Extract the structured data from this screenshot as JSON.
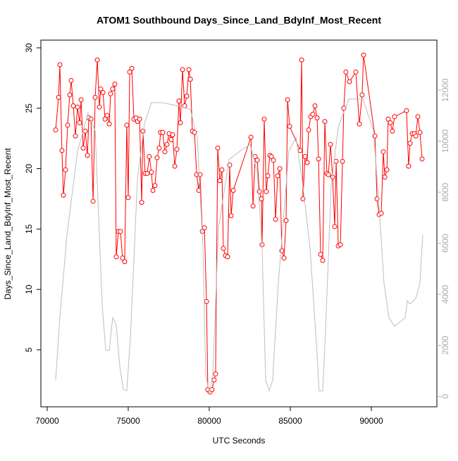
{
  "chart_data": {
    "type": "line",
    "title": "ATOM1 Southbound Days_Since_Land_BdyInf_Most_Recent",
    "xlabel": "UTC Seconds",
    "ylabel": "Days_Since_Land_BdyInf_Most_Recent",
    "xlim": [
      69609,
      94043
    ],
    "ylim": [
      0.28,
      30.64
    ],
    "y2lim": [
      -408,
      13960
    ],
    "xticks": [
      70000,
      75000,
      80000,
      85000,
      90000
    ],
    "yticks": [
      5,
      10,
      15,
      20,
      25,
      30
    ],
    "y2ticks": [
      0,
      2000,
      4000,
      6000,
      8000,
      10000,
      12000
    ],
    "y2_color": "#aaaaaa",
    "series": [
      {
        "color": "#ff0000",
        "markers": true,
        "x": [
          70520,
          70700,
          70780,
          70910,
          71000,
          71130,
          71260,
          71390,
          71480,
          71610,
          71740,
          71870,
          72000,
          72090,
          72220,
          72350,
          72480,
          72570,
          72700,
          72830,
          72960,
          73090,
          73220,
          73300,
          73440,
          73570,
          73700,
          73830,
          73910,
          74040,
          74170,
          74260,
          74390,
          74520,
          74650,
          74780,
          74910,
          75000,
          75090,
          75220,
          75350,
          75480,
          75570,
          75700,
          75830,
          75910,
          76040,
          76170,
          76300,
          76430,
          76520,
          76650,
          76780,
          76910,
          77000,
          77130,
          77260,
          77390,
          77520,
          77650,
          77740,
          77870,
          78000,
          78130,
          78220,
          78350,
          78480,
          78610,
          78740,
          78830,
          78960,
          79090,
          79220,
          79350,
          79430,
          79570,
          79700,
          79830,
          79910,
          80040,
          80170,
          80300,
          80390,
          80520,
          80650,
          80780,
          80870,
          81000,
          81130,
          81260,
          81350,
          81480,
          82570,
          82700,
          82830,
          82960,
          83090,
          83220,
          83260,
          83390,
          83520,
          83610,
          83740,
          83830,
          83960,
          84090,
          84220,
          84350,
          84480,
          84610,
          84740,
          84830,
          84960,
          85610,
          85700,
          85780,
          85910,
          86040,
          86130,
          86260,
          86390,
          86520,
          86650,
          86740,
          86870,
          87000,
          87130,
          87260,
          87350,
          87480,
          87610,
          87740,
          87830,
          87960,
          88090,
          88220,
          88300,
          88430,
          88650,
          89040,
          89260,
          89430,
          89520,
          90220,
          90350,
          90480,
          90610,
          90740,
          90830,
          90960,
          91040,
          91170,
          91300,
          91430,
          92170,
          92300,
          92390,
          92520,
          92650,
          92740,
          92870,
          93000,
          93130
        ],
        "values": [
          23.2,
          25.9,
          28.6,
          21.5,
          17.8,
          19.9,
          23.6,
          26.1,
          27.3,
          25.2,
          22.7,
          25.1,
          23.8,
          25.7,
          21.7,
          23.1,
          21.1,
          24.2,
          24.1,
          17.3,
          25.9,
          29.0,
          25.1,
          26.6,
          26.3,
          24.1,
          24.4,
          23.7,
          26.2,
          26.6,
          27.0,
          12.7,
          14.8,
          14.8,
          12.6,
          12.3,
          23.6,
          17.6,
          28.0,
          28.3,
          24.1,
          24.2,
          23.9,
          24.1,
          17.2,
          23.1,
          19.6,
          19.6,
          21.0,
          19.7,
          18.2,
          18.6,
          20.9,
          21.7,
          23.0,
          23.0,
          21.4,
          22.0,
          22.9,
          22.4,
          22.8,
          20.2,
          21.6,
          25.6,
          23.8,
          28.2,
          25.2,
          26.0,
          28.2,
          27.4,
          23.1,
          23.0,
          19.5,
          18.2,
          19.5,
          14.8,
          15.1,
          9.0,
          1.7,
          1.5,
          1.7,
          2.5,
          3.0,
          21.7,
          19.0,
          19.9,
          13.4,
          12.8,
          12.7,
          20.3,
          16.1,
          18.2,
          22.6,
          16.9,
          21.0,
          20.7,
          18.1,
          17.5,
          13.7,
          24.1,
          18.1,
          19.4,
          21.1,
          21.0,
          20.7,
          15.8,
          19.4,
          20.0,
          13.2,
          12.6,
          15.7,
          25.7,
          23.5,
          21.5,
          29.0,
          17.5,
          21.0,
          20.5,
          23.2,
          24.3,
          24.5,
          25.2,
          24.2,
          20.8,
          12.9,
          12.4,
          23.9,
          19.6,
          19.5,
          22.0,
          19.3,
          15.2,
          20.6,
          13.6,
          13.7,
          20.6,
          25.0,
          28.0,
          27.2,
          28.0,
          23.7,
          26.1,
          29.4,
          22.7,
          17.5,
          16.2,
          16.3,
          21.4,
          19.3,
          19.9,
          24.1,
          23.8,
          23.1,
          24.3,
          24.8,
          20.2,
          22.1,
          22.9,
          22.9,
          22.7,
          24.3,
          23.0,
          20.8
        ]
      },
      {
        "color": "#bebebe",
        "axis": "y2",
        "x": [
          70520,
          70780,
          71220,
          71870,
          72520,
          72960,
          73390,
          73610,
          73830,
          74040,
          74260,
          74480,
          74700,
          74910,
          75130,
          75570,
          76000,
          76430,
          77090,
          78170,
          78830,
          79260,
          79610,
          79780,
          80000,
          80220,
          80570,
          81220,
          81870,
          82520,
          82960,
          83260,
          83480,
          83700,
          83910,
          84260,
          84910,
          85350,
          85780,
          86220,
          86650,
          86780,
          87000,
          87170,
          87520,
          87960,
          88610,
          89480,
          90130,
          90480,
          90780,
          91090,
          91430,
          92090,
          92220,
          92390,
          92740,
          93000,
          93170
        ],
        "values": [
          630,
          3080,
          6340,
          9600,
          11100,
          10400,
          3620,
          1800,
          1800,
          3080,
          2800,
          1170,
          270,
          220,
          2260,
          8520,
          10700,
          11510,
          11510,
          11370,
          11240,
          10150,
          5800,
          900,
          80,
          900,
          6610,
          9280,
          9600,
          9880,
          8790,
          5800,
          630,
          220,
          630,
          4440,
          9600,
          10150,
          8240,
          5800,
          1710,
          220,
          220,
          2530,
          8240,
          10560,
          11650,
          11650,
          10420,
          7430,
          4440,
          3080,
          2750,
          3080,
          3760,
          3620,
          3840,
          4440,
          6340
        ]
      }
    ]
  }
}
